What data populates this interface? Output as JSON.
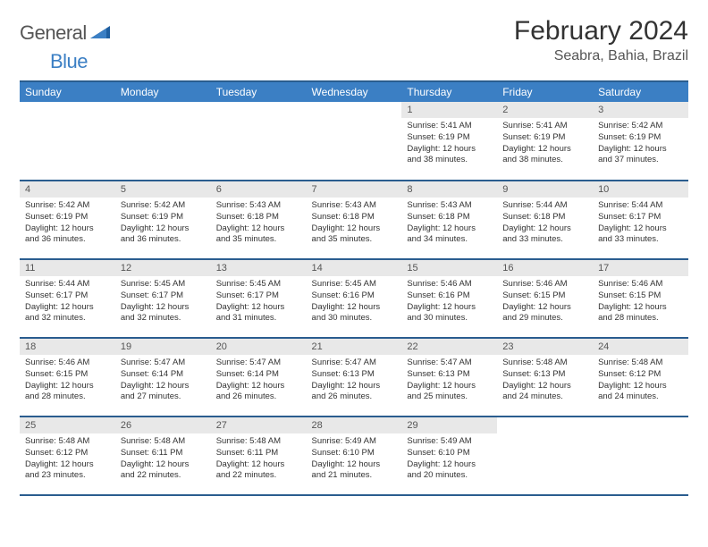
{
  "logo": {
    "general": "General",
    "blue": "Blue"
  },
  "title": "February 2024",
  "location": "Seabra, Bahia, Brazil",
  "colors": {
    "header_bg": "#3b7fc4",
    "header_border": "#2a5d8f",
    "daynum_bg": "#e8e8e8",
    "text": "#333333",
    "logo_gray": "#555555",
    "logo_blue": "#3b7fc4"
  },
  "weekdays": [
    "Sunday",
    "Monday",
    "Tuesday",
    "Wednesday",
    "Thursday",
    "Friday",
    "Saturday"
  ],
  "cells": [
    {
      "empty": true
    },
    {
      "empty": true
    },
    {
      "empty": true
    },
    {
      "empty": true
    },
    {
      "day": "1",
      "sunrise": "Sunrise: 5:41 AM",
      "sunset": "Sunset: 6:19 PM",
      "dl1": "Daylight: 12 hours",
      "dl2": "and 38 minutes."
    },
    {
      "day": "2",
      "sunrise": "Sunrise: 5:41 AM",
      "sunset": "Sunset: 6:19 PM",
      "dl1": "Daylight: 12 hours",
      "dl2": "and 38 minutes."
    },
    {
      "day": "3",
      "sunrise": "Sunrise: 5:42 AM",
      "sunset": "Sunset: 6:19 PM",
      "dl1": "Daylight: 12 hours",
      "dl2": "and 37 minutes."
    },
    {
      "day": "4",
      "sunrise": "Sunrise: 5:42 AM",
      "sunset": "Sunset: 6:19 PM",
      "dl1": "Daylight: 12 hours",
      "dl2": "and 36 minutes."
    },
    {
      "day": "5",
      "sunrise": "Sunrise: 5:42 AM",
      "sunset": "Sunset: 6:19 PM",
      "dl1": "Daylight: 12 hours",
      "dl2": "and 36 minutes."
    },
    {
      "day": "6",
      "sunrise": "Sunrise: 5:43 AM",
      "sunset": "Sunset: 6:18 PM",
      "dl1": "Daylight: 12 hours",
      "dl2": "and 35 minutes."
    },
    {
      "day": "7",
      "sunrise": "Sunrise: 5:43 AM",
      "sunset": "Sunset: 6:18 PM",
      "dl1": "Daylight: 12 hours",
      "dl2": "and 35 minutes."
    },
    {
      "day": "8",
      "sunrise": "Sunrise: 5:43 AM",
      "sunset": "Sunset: 6:18 PM",
      "dl1": "Daylight: 12 hours",
      "dl2": "and 34 minutes."
    },
    {
      "day": "9",
      "sunrise": "Sunrise: 5:44 AM",
      "sunset": "Sunset: 6:18 PM",
      "dl1": "Daylight: 12 hours",
      "dl2": "and 33 minutes."
    },
    {
      "day": "10",
      "sunrise": "Sunrise: 5:44 AM",
      "sunset": "Sunset: 6:17 PM",
      "dl1": "Daylight: 12 hours",
      "dl2": "and 33 minutes."
    },
    {
      "day": "11",
      "sunrise": "Sunrise: 5:44 AM",
      "sunset": "Sunset: 6:17 PM",
      "dl1": "Daylight: 12 hours",
      "dl2": "and 32 minutes."
    },
    {
      "day": "12",
      "sunrise": "Sunrise: 5:45 AM",
      "sunset": "Sunset: 6:17 PM",
      "dl1": "Daylight: 12 hours",
      "dl2": "and 32 minutes."
    },
    {
      "day": "13",
      "sunrise": "Sunrise: 5:45 AM",
      "sunset": "Sunset: 6:17 PM",
      "dl1": "Daylight: 12 hours",
      "dl2": "and 31 minutes."
    },
    {
      "day": "14",
      "sunrise": "Sunrise: 5:45 AM",
      "sunset": "Sunset: 6:16 PM",
      "dl1": "Daylight: 12 hours",
      "dl2": "and 30 minutes."
    },
    {
      "day": "15",
      "sunrise": "Sunrise: 5:46 AM",
      "sunset": "Sunset: 6:16 PM",
      "dl1": "Daylight: 12 hours",
      "dl2": "and 30 minutes."
    },
    {
      "day": "16",
      "sunrise": "Sunrise: 5:46 AM",
      "sunset": "Sunset: 6:15 PM",
      "dl1": "Daylight: 12 hours",
      "dl2": "and 29 minutes."
    },
    {
      "day": "17",
      "sunrise": "Sunrise: 5:46 AM",
      "sunset": "Sunset: 6:15 PM",
      "dl1": "Daylight: 12 hours",
      "dl2": "and 28 minutes."
    },
    {
      "day": "18",
      "sunrise": "Sunrise: 5:46 AM",
      "sunset": "Sunset: 6:15 PM",
      "dl1": "Daylight: 12 hours",
      "dl2": "and 28 minutes."
    },
    {
      "day": "19",
      "sunrise": "Sunrise: 5:47 AM",
      "sunset": "Sunset: 6:14 PM",
      "dl1": "Daylight: 12 hours",
      "dl2": "and 27 minutes."
    },
    {
      "day": "20",
      "sunrise": "Sunrise: 5:47 AM",
      "sunset": "Sunset: 6:14 PM",
      "dl1": "Daylight: 12 hours",
      "dl2": "and 26 minutes."
    },
    {
      "day": "21",
      "sunrise": "Sunrise: 5:47 AM",
      "sunset": "Sunset: 6:13 PM",
      "dl1": "Daylight: 12 hours",
      "dl2": "and 26 minutes."
    },
    {
      "day": "22",
      "sunrise": "Sunrise: 5:47 AM",
      "sunset": "Sunset: 6:13 PM",
      "dl1": "Daylight: 12 hours",
      "dl2": "and 25 minutes."
    },
    {
      "day": "23",
      "sunrise": "Sunrise: 5:48 AM",
      "sunset": "Sunset: 6:13 PM",
      "dl1": "Daylight: 12 hours",
      "dl2": "and 24 minutes."
    },
    {
      "day": "24",
      "sunrise": "Sunrise: 5:48 AM",
      "sunset": "Sunset: 6:12 PM",
      "dl1": "Daylight: 12 hours",
      "dl2": "and 24 minutes."
    },
    {
      "day": "25",
      "sunrise": "Sunrise: 5:48 AM",
      "sunset": "Sunset: 6:12 PM",
      "dl1": "Daylight: 12 hours",
      "dl2": "and 23 minutes."
    },
    {
      "day": "26",
      "sunrise": "Sunrise: 5:48 AM",
      "sunset": "Sunset: 6:11 PM",
      "dl1": "Daylight: 12 hours",
      "dl2": "and 22 minutes."
    },
    {
      "day": "27",
      "sunrise": "Sunrise: 5:48 AM",
      "sunset": "Sunset: 6:11 PM",
      "dl1": "Daylight: 12 hours",
      "dl2": "and 22 minutes."
    },
    {
      "day": "28",
      "sunrise": "Sunrise: 5:49 AM",
      "sunset": "Sunset: 6:10 PM",
      "dl1": "Daylight: 12 hours",
      "dl2": "and 21 minutes."
    },
    {
      "day": "29",
      "sunrise": "Sunrise: 5:49 AM",
      "sunset": "Sunset: 6:10 PM",
      "dl1": "Daylight: 12 hours",
      "dl2": "and 20 minutes."
    },
    {
      "empty": true
    },
    {
      "empty": true
    }
  ]
}
